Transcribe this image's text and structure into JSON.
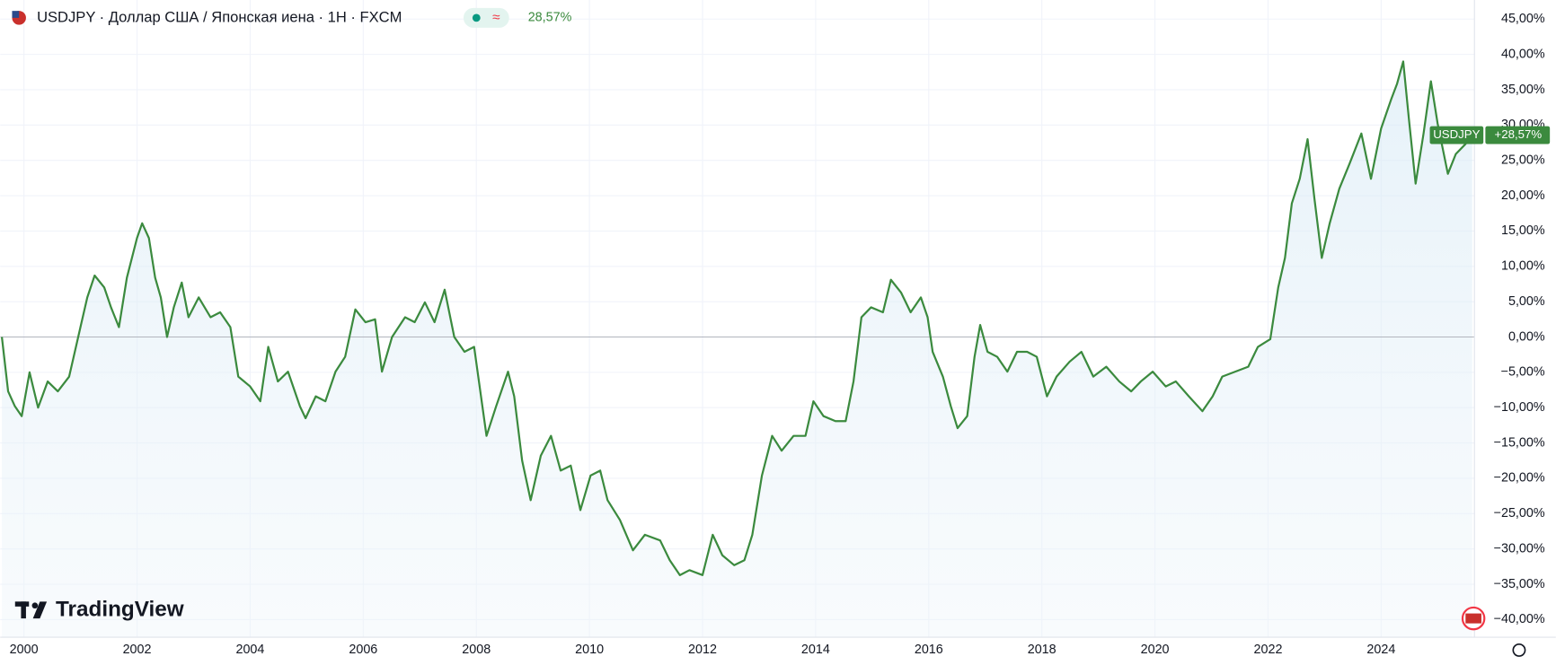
{
  "chart_data": {
    "type": "line",
    "title": "USDJPY · Доллар США / Японская иена · 1H · FXCM",
    "legend_value": "28,57%",
    "symbol_tag": "USDJPY",
    "watermark": "TradingView",
    "annotations": [
      {
        "label": "+28,57%",
        "value": 28.57
      }
    ],
    "x": [
      1999.61,
      1999.72,
      1999.84,
      1999.96,
      2000.1,
      2000.25,
      2000.42,
      2000.6,
      2000.8,
      2001.0,
      2001.12,
      2001.25,
      2001.42,
      2001.54,
      2001.68,
      2001.82,
      2002.0,
      2002.09,
      2002.21,
      2002.32,
      2002.42,
      2002.53,
      2002.65,
      2002.79,
      2002.91,
      2003.09,
      2003.3,
      2003.47,
      2003.65,
      2003.79,
      2004.0,
      2004.18,
      2004.32,
      2004.49,
      2004.67,
      2004.88,
      2004.98,
      2005.16,
      2005.33,
      2005.51,
      2005.68,
      2005.86,
      2006.04,
      2006.21,
      2006.33,
      2006.51,
      2006.74,
      2006.91,
      2007.09,
      2007.26,
      2007.44,
      2007.61,
      2007.79,
      2007.96,
      2008.18,
      2008.35,
      2008.56,
      2008.67,
      2008.81,
      2008.96,
      2009.14,
      2009.32,
      2009.49,
      2009.67,
      2009.84,
      2010.02,
      2010.19,
      2010.32,
      2010.54,
      2010.77,
      2010.98,
      2011.25,
      2011.42,
      2011.6,
      2011.77,
      2012.0,
      2012.18,
      2012.35,
      2012.56,
      2012.74,
      2012.88,
      2013.05,
      2013.23,
      2013.4,
      2013.61,
      2013.82,
      2013.96,
      2014.14,
      2014.35,
      2014.53,
      2014.67,
      2014.81,
      2014.98,
      2015.19,
      2015.33,
      2015.51,
      2015.68,
      2015.86,
      2015.98,
      2016.07,
      2016.25,
      2016.39,
      2016.51,
      2016.68,
      2016.81,
      2016.91,
      2017.04,
      2017.21,
      2017.39,
      2017.56,
      2017.74,
      2017.91,
      2018.09,
      2018.26,
      2018.49,
      2018.7,
      2018.91,
      2019.14,
      2019.37,
      2019.58,
      2019.75,
      2019.96,
      2020.19,
      2020.37,
      2020.6,
      2020.84,
      2021.02,
      2021.19,
      2021.42,
      2021.65,
      2021.82,
      2022.04,
      2022.18,
      2022.3,
      2022.42,
      2022.56,
      2022.7,
      2022.82,
      2022.95,
      2023.09,
      2023.26,
      2023.44,
      2023.65,
      2023.82,
      2024.0,
      2024.18,
      2024.28,
      2024.39,
      2024.49,
      2024.61,
      2024.75,
      2024.88,
      2025.0,
      2025.18,
      2025.32,
      2025.49,
      2025.61
    ],
    "series": [
      {
        "name": "USDJPY",
        "color": "#3b8a3e",
        "values": [
          0,
          -7.7,
          -9.8,
          -11.2,
          -5,
          -10,
          -6.3,
          -7.7,
          -5.6,
          1.4,
          5.6,
          8.7,
          7,
          4.2,
          1.4,
          8.4,
          14,
          16.1,
          14,
          8.4,
          5.6,
          0,
          4.2,
          7.7,
          2.8,
          5.6,
          2.8,
          3.5,
          1.4,
          -5.6,
          -7,
          -9.1,
          -1.4,
          -6.3,
          -4.9,
          -9.8,
          -11.5,
          -8.4,
          -9.1,
          -4.9,
          -2.8,
          3.9,
          2.1,
          2.5,
          -4.9,
          0,
          2.8,
          2.1,
          4.9,
          2.1,
          6.7,
          0,
          -2.1,
          -1.4,
          -14,
          -9.8,
          -4.9,
          -8.4,
          -17.5,
          -23.1,
          -16.8,
          -14,
          -18.9,
          -18.2,
          -24.5,
          -19.6,
          -18.9,
          -23.1,
          -25.9,
          -30.2,
          -28,
          -28.8,
          -31.6,
          -33.7,
          -33,
          -33.7,
          -28,
          -30.9,
          -32.3,
          -31.6,
          -28,
          -19.6,
          -14,
          -16.1,
          -14,
          -14,
          -9.1,
          -11.2,
          -11.9,
          -11.9,
          -6.3,
          2.8,
          4.2,
          3.5,
          8.1,
          6.3,
          3.5,
          5.6,
          2.8,
          -2.1,
          -5.6,
          -9.8,
          -12.9,
          -11.2,
          -2.8,
          1.7,
          -2.1,
          -2.8,
          -4.9,
          -2.1,
          -2.1,
          -2.8,
          -8.4,
          -5.6,
          -3.5,
          -2.1,
          -5.6,
          -4.2,
          -6.3,
          -7.7,
          -6.3,
          -4.9,
          -7,
          -6.3,
          -8.4,
          -10.5,
          -8.4,
          -5.6,
          -4.9,
          -4.2,
          -1.4,
          -0.3,
          7,
          11.2,
          18.9,
          22.4,
          28,
          19.6,
          11.2,
          16.1,
          21,
          24.5,
          28.8,
          22.4,
          29.5,
          33.7,
          35.8,
          39,
          30.9,
          21.7,
          28.8,
          36.2,
          30.2,
          23.1,
          25.9,
          27.3,
          28.57
        ]
      }
    ],
    "xlim": [
      1999.58,
      2025.65
    ],
    "xticks": [
      2000,
      2002,
      2004,
      2006,
      2008,
      2010,
      2012,
      2014,
      2016,
      2018,
      2020,
      2022,
      2024
    ],
    "ylim": [
      -42.5,
      47.7
    ],
    "yticks": [
      {
        "value": 45,
        "label": "45,00%"
      },
      {
        "value": 40,
        "label": "40,00%"
      },
      {
        "value": 35,
        "label": "35,00%"
      },
      {
        "value": 30,
        "label": "30,00%"
      },
      {
        "value": 25,
        "label": "25,00%"
      },
      {
        "value": 20,
        "label": "20,00%"
      },
      {
        "value": 15,
        "label": "15,00%"
      },
      {
        "value": 10,
        "label": "10,00%"
      },
      {
        "value": 5,
        "label": "5,00%"
      },
      {
        "value": 0,
        "label": "0,00%"
      },
      {
        "value": -5,
        "label": "−5,00%"
      },
      {
        "value": -10,
        "label": "−10,00%"
      },
      {
        "value": -15,
        "label": "−15,00%"
      },
      {
        "value": -20,
        "label": "−20,00%"
      },
      {
        "value": -25,
        "label": "−25,00%"
      },
      {
        "value": -30,
        "label": "−30,00%"
      },
      {
        "value": -35,
        "label": "−35,00%"
      },
      {
        "value": -40,
        "label": "−40,00%"
      }
    ],
    "grid": true
  }
}
